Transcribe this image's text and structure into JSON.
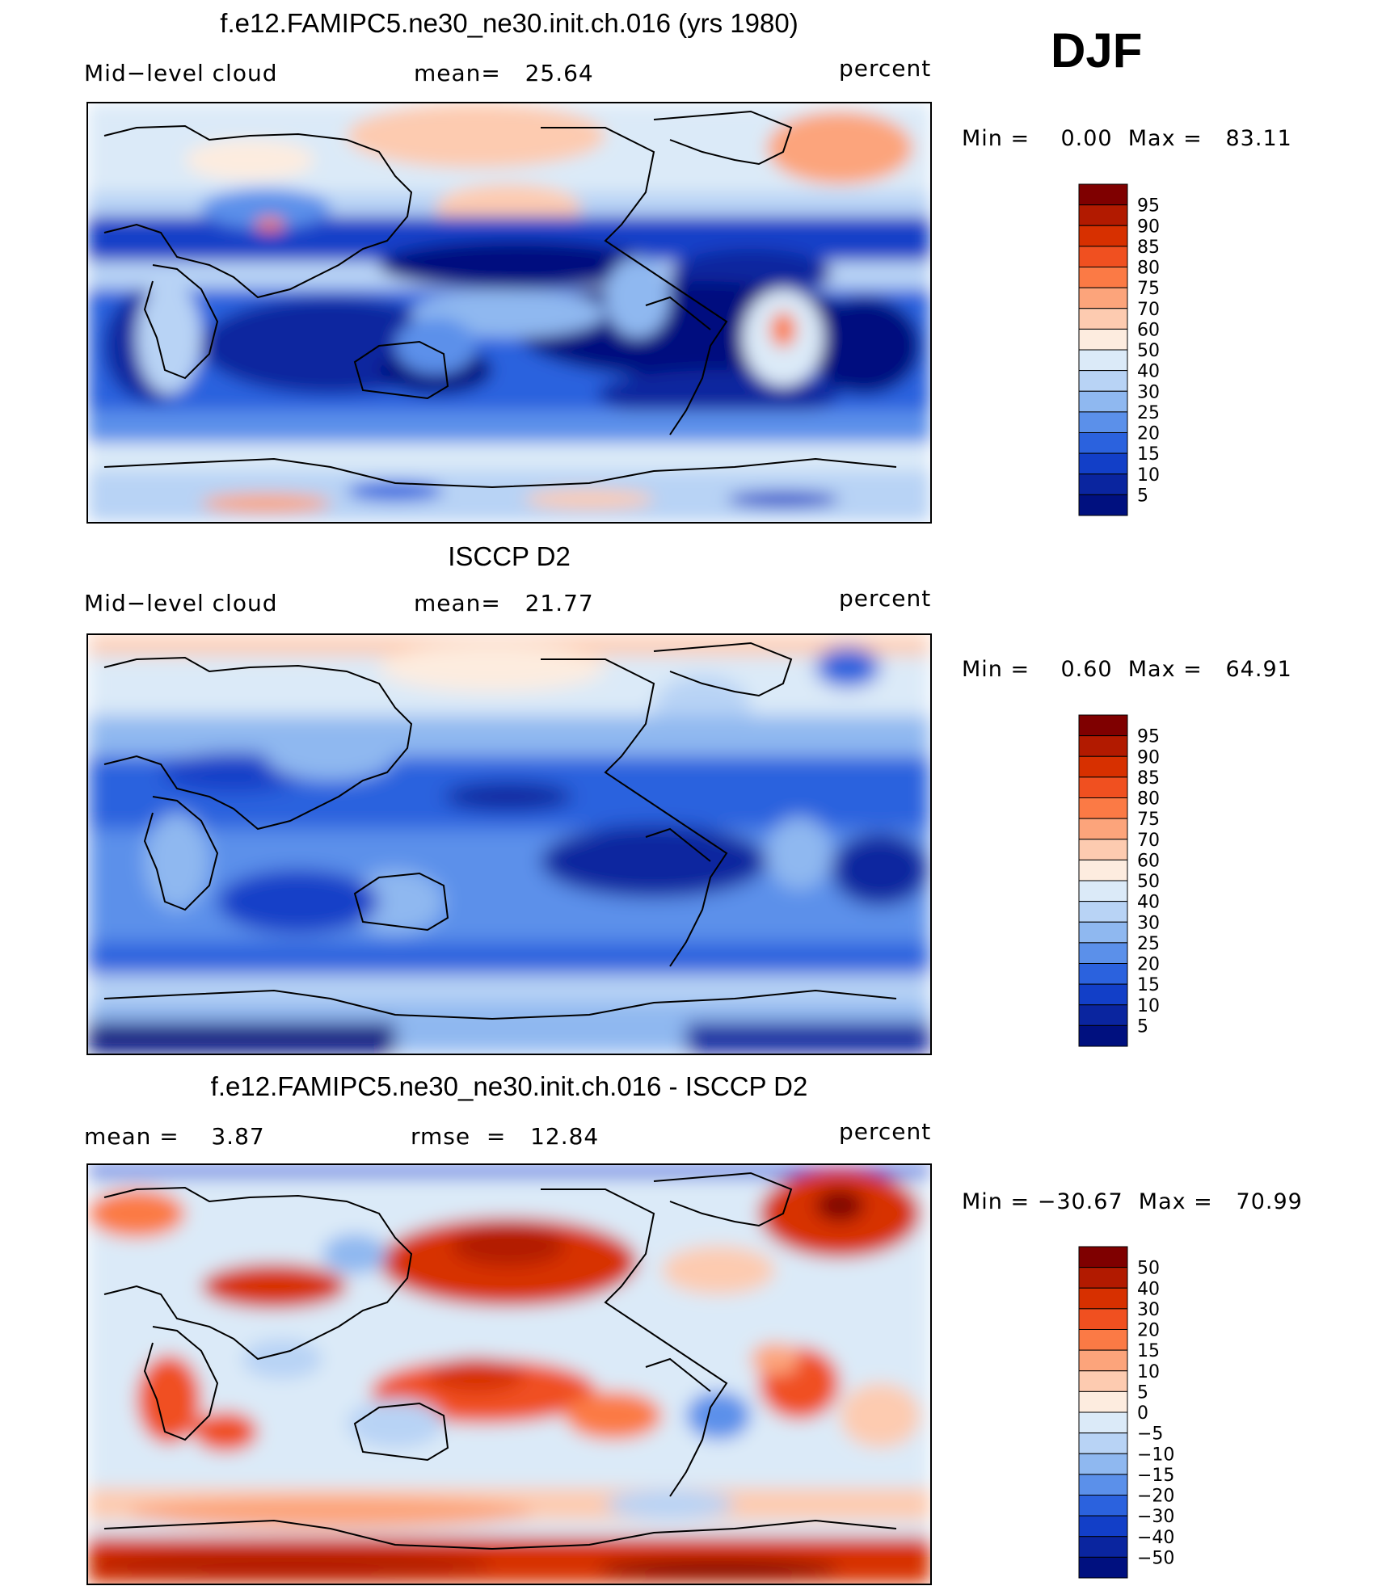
{
  "season": "DJF",
  "panels": [
    {
      "id": "model",
      "title": "f.e12.FAMIPC5.ne30_ne30.init.ch.016 (yrs 1980)",
      "left_label": "Mid−level cloud",
      "center_label": "mean=   25.64",
      "right_label": "percent",
      "minmax": "Min =    0.00  Max =   83.11"
    },
    {
      "id": "obs",
      "title": "ISCCP D2",
      "left_label": "Mid−level cloud",
      "center_label": "mean=   21.77",
      "right_label": "percent",
      "minmax": "Min =    0.60  Max =   64.91"
    },
    {
      "id": "diff",
      "title": "f.e12.FAMIPC5.ne30_ne30.init.ch.016 - ISCCP D2",
      "left_label": "mean =    3.87",
      "center_label": "rmse  =   12.84",
      "right_label": "percent",
      "minmax": "Min = −30.67  Max =   70.99"
    }
  ],
  "colorbars": {
    "abs": {
      "labels": [
        "95",
        "90",
        "85",
        "80",
        "75",
        "70",
        "60",
        "50",
        "40",
        "30",
        "25",
        "20",
        "15",
        "10",
        "5"
      ],
      "colors": [
        "#7f0000",
        "#b21a00",
        "#d73000",
        "#f05020",
        "#fb7a45",
        "#fca47b",
        "#fdcbb0",
        "#fdecdf",
        "#dbeaf8",
        "#b8d3f5",
        "#8fb8f0",
        "#5b90ea",
        "#2b62de",
        "#123fc8",
        "#0a259f",
        "#00107f"
      ]
    },
    "diff": {
      "labels": [
        "50",
        "40",
        "30",
        "20",
        "15",
        "10",
        "5",
        "0",
        "−5",
        "−10",
        "−15",
        "−20",
        "−30",
        "−40",
        "−50"
      ],
      "colors": [
        "#7f0000",
        "#b21a00",
        "#d73000",
        "#f05020",
        "#fb7a45",
        "#fca47b",
        "#fdcbb0",
        "#fdecdf",
        "#dbeaf8",
        "#b8d3f5",
        "#8fb8f0",
        "#5b90ea",
        "#2b62de",
        "#123fc8",
        "#0a259f",
        "#00107f"
      ]
    }
  },
  "chart_data": [
    {
      "type": "heatmap",
      "title": "f.e12.FAMIPC5.ne30_ne30.init.ch.016 (yrs 1980)",
      "variable": "Mid−level cloud",
      "units": "percent",
      "mean": 25.64,
      "min": 0.0,
      "max": 83.11,
      "contour_levels": [
        5,
        10,
        15,
        20,
        25,
        30,
        40,
        50,
        60,
        70,
        75,
        80,
        85,
        90,
        95
      ]
    },
    {
      "type": "heatmap",
      "title": "ISCCP D2",
      "variable": "Mid−level cloud",
      "units": "percent",
      "mean": 21.77,
      "min": 0.6,
      "max": 64.91,
      "contour_levels": [
        5,
        10,
        15,
        20,
        25,
        30,
        40,
        50,
        60,
        70,
        75,
        80,
        85,
        90,
        95
      ]
    },
    {
      "type": "heatmap",
      "title": "f.e12.FAMIPC5.ne30_ne30.init.ch.016 - ISCCP D2",
      "units": "percent",
      "mean": 3.87,
      "rmse": 12.84,
      "min": -30.67,
      "max": 70.99,
      "contour_levels": [
        -50,
        -40,
        -30,
        -20,
        -15,
        -10,
        -5,
        0,
        5,
        10,
        15,
        20,
        30,
        40,
        50
      ]
    }
  ]
}
